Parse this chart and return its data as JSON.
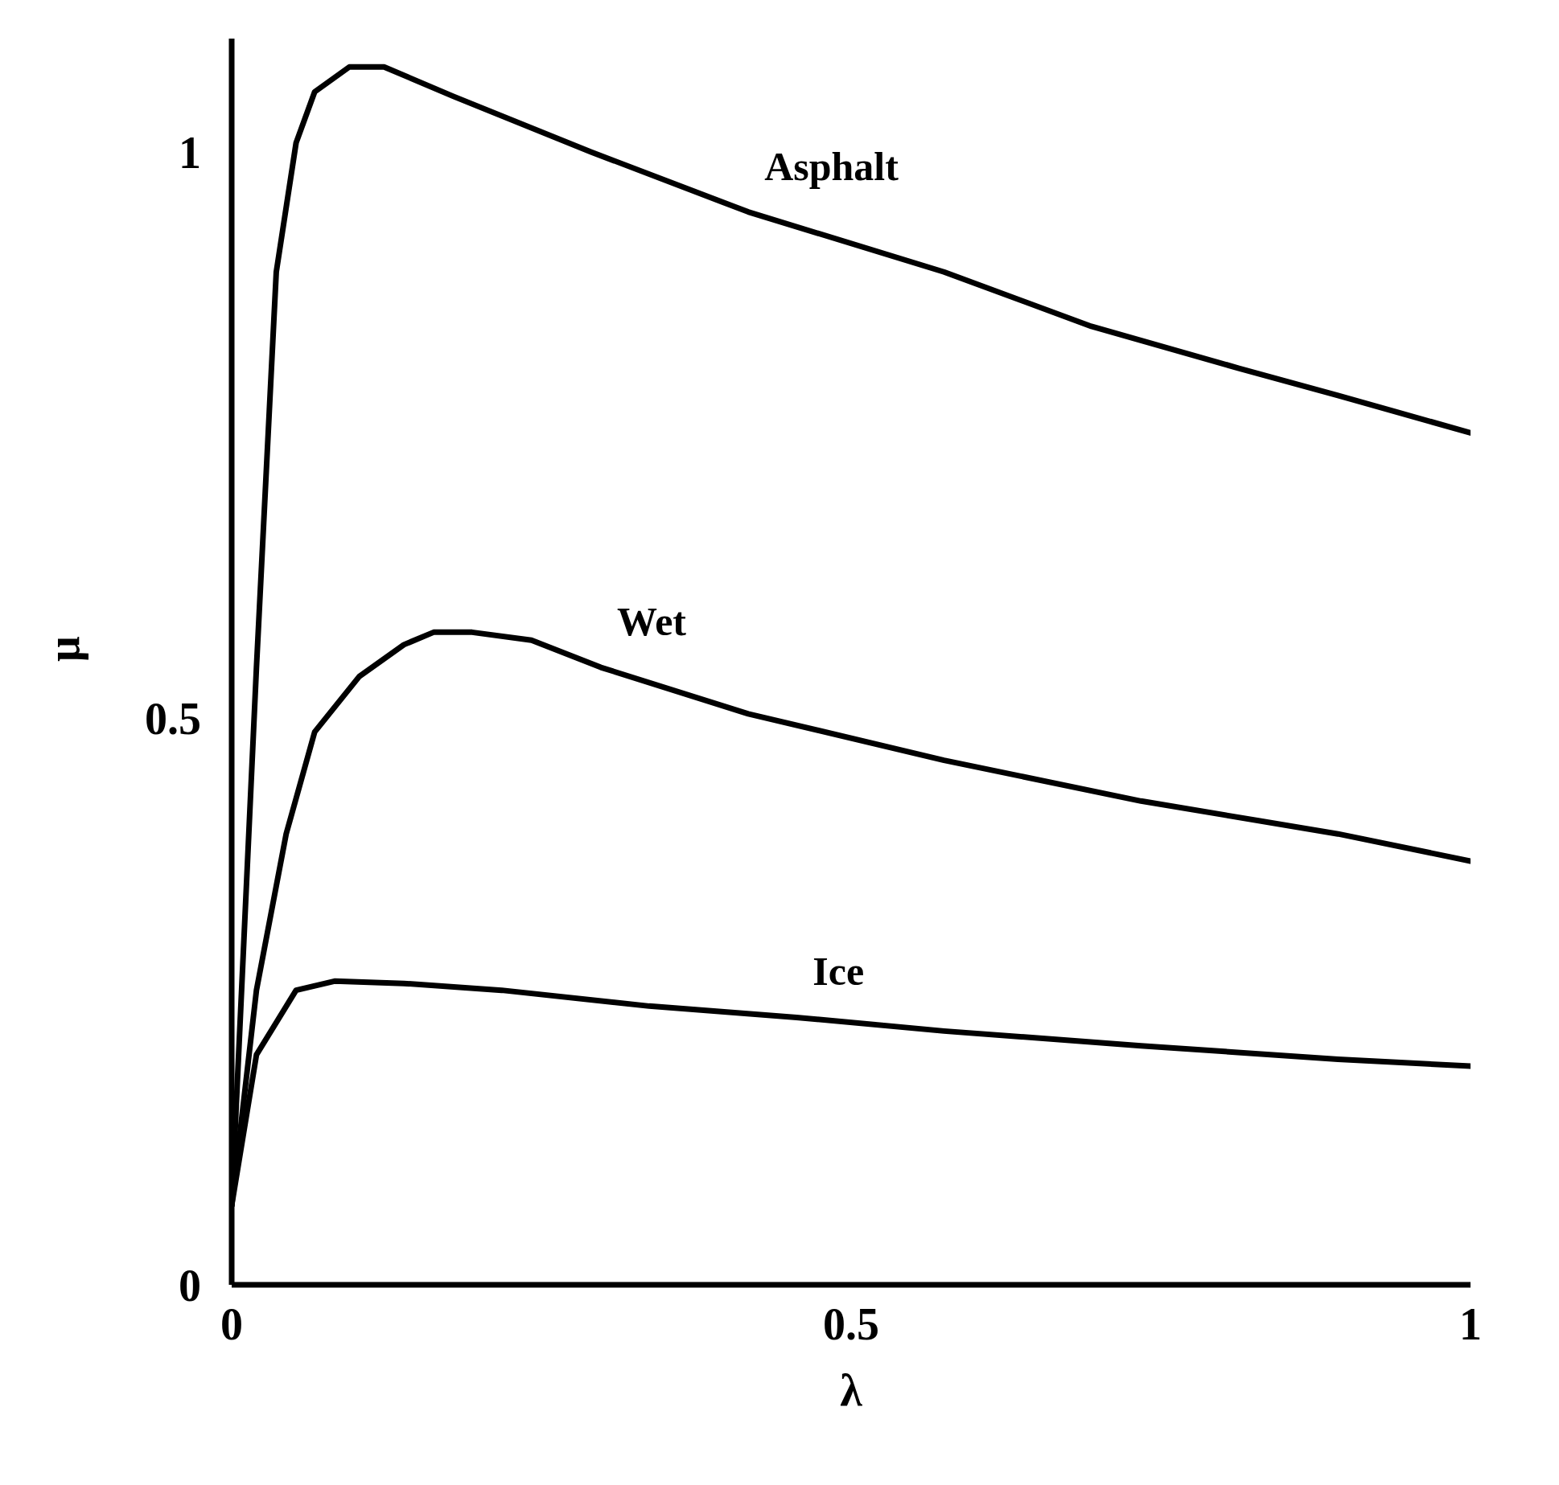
{
  "chart_data": {
    "type": "line",
    "xlabel": "λ",
    "ylabel": "μ",
    "xlim": [
      0,
      1
    ],
    "xticks": [
      0,
      0.5,
      1
    ],
    "ylim": [
      0,
      1.1
    ],
    "yticks": [
      0,
      0.5,
      1
    ],
    "grid": false,
    "legend": false,
    "marker": "none",
    "line_style": "solid",
    "series": [
      {
        "name": "Asphalt",
        "color": "#000000",
        "x": [
          0,
          0.02,
          0.036,
          0.052,
          0.067,
          0.095,
          0.123,
          0.179,
          0.29,
          0.417,
          0.575,
          0.694,
          0.813,
          0.893,
          1.0
        ],
        "values": [
          0.07,
          0.545,
          0.894,
          1.008,
          1.053,
          1.075,
          1.075,
          1.049,
          1.0,
          0.947,
          0.894,
          0.846,
          0.809,
          0.785,
          0.752
        ]
      },
      {
        "name": "Wet",
        "color": "#000000",
        "x": [
          0,
          0.02,
          0.044,
          0.067,
          0.103,
          0.139,
          0.163,
          0.194,
          0.242,
          0.298,
          0.417,
          0.575,
          0.734,
          0.893,
          1.0
        ],
        "values": [
          0.07,
          0.26,
          0.398,
          0.488,
          0.537,
          0.565,
          0.576,
          0.576,
          0.569,
          0.545,
          0.504,
          0.463,
          0.427,
          0.398,
          0.374
        ]
      },
      {
        "name": "Ice",
        "color": "#000000",
        "x": [
          0,
          0.02,
          0.052,
          0.083,
          0.139,
          0.218,
          0.337,
          0.456,
          0.575,
          0.734,
          0.893,
          1.0
        ],
        "values": [
          0.07,
          0.203,
          0.26,
          0.268,
          0.266,
          0.26,
          0.246,
          0.236,
          0.224,
          0.211,
          0.199,
          0.193
        ]
      }
    ]
  }
}
